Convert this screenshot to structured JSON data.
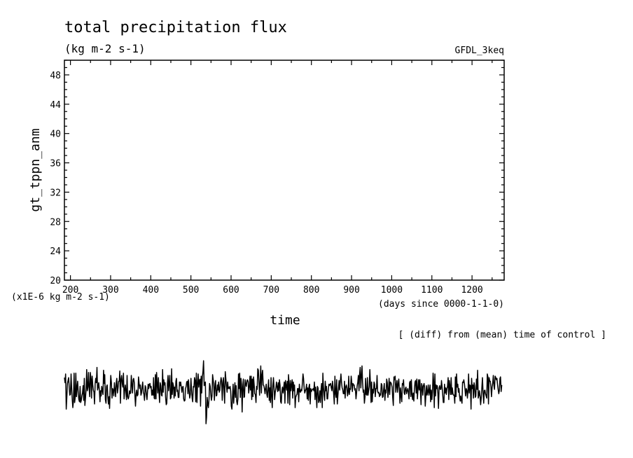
{
  "chart_data": {
    "type": "line",
    "title": "total precipitation flux",
    "subtitle": "(kg m-2 s-1)",
    "experiment": "GFDL_3keq",
    "xlabel": "time",
    "x_unit": "(days since 0000-1-1-0)",
    "ylabel": "gt_tppn_anm",
    "y_scale_note": "(x1E-6 kg m-2 s-1)",
    "footnote": "[ (diff) from (mean) time of control ]",
    "xlim": [
      185,
      1280
    ],
    "ylim": [
      20,
      50
    ],
    "x_ticks": [
      200,
      300,
      400,
      500,
      600,
      700,
      800,
      900,
      1000,
      1100,
      1200
    ],
    "y_ticks": [
      20,
      24,
      28,
      32,
      36,
      40,
      44,
      48
    ],
    "grid": false,
    "series": [
      {
        "x_start": 185,
        "x_step": 1.5,
        "values": [
          6.7,
          6.0,
          7.2,
          2.4,
          3.9,
          5.9,
          6.3,
          6.7,
          5.3,
          4.3,
          4.4,
          7.2,
          5.3,
          3.7,
          2.6,
          3.5,
          7.3,
          3.3,
          4.1,
          7.3,
          4.1,
          5.4,
          6.2,
          4.5,
          3.7,
          3.4,
          5.5,
          3.3,
          3.6,
          4.2,
          4.6,
          5.6,
          3.6,
          6.6,
          2.9,
          3.9,
          5.2,
          7.8,
          4.9,
          5.4,
          7.4,
          5.3,
          4.1,
          7.4,
          6.5,
          3.9,
          6.9,
          5.8,
          5.0,
          4.7,
          3.1,
          5.9,
          6.6,
          6.0,
          8.1,
          5.0,
          5.4,
          6.0,
          5.0,
          3.4,
          4.9,
          4.2,
          5.5,
          5.0,
          4.4,
          7.7,
          5.9,
          7.1,
          3.7,
          3.2,
          5.5,
          5.7,
          4.2,
          3.1,
          4.1,
          2.5,
          5.3,
          7.0,
          6.0,
          3.9,
          5.2,
          5.0,
          4.2,
          6.0,
          5.0,
          4.1,
          6.0,
          6.6,
          4.6,
          5.3,
          6.2,
          6.2,
          7.6,
          3.2,
          6.5,
          7.0,
          5.9,
          5.4,
          7.3,
          3.8,
          4.9,
          5.7,
          4.9,
          3.7,
          7.0,
          4.1,
          3.8,
          4.1,
          4.9,
          4.5,
          4.6,
          7.0,
          5.7,
          4.6,
          6.4,
          6.6,
          6.0,
          4.2,
          2.8,
          4.5,
          5.0,
          4.2,
          4.4,
          6.8,
          5.9,
          5.2,
          5.7,
          4.3,
          4.6,
          5.5,
          6.1,
          4.7,
          4.4,
          3.6,
          5.6,
          5.4,
          4.4,
          3.7,
          4.8,
          5.8,
          5.2,
          5.8,
          5.9,
          5.3,
          5.5,
          4.3,
          5.0,
          4.3,
          6.7,
          3.9,
          3.8,
          7.1,
          3.8,
          7.4,
          5.8,
          4.6,
          6.7,
          4.7,
          3.3,
          6.0,
          5.6,
          4.3,
          4.2,
          7.8,
          4.7,
          6.4,
          5.7,
          6.0,
          4.0,
          3.0,
          3.2,
          5.9,
          7.0,
          4.9,
          6.0,
          7.0,
          3.8,
          4.0,
          7.9,
          4.4,
          6.0,
          5.6,
          3.9,
          5.4,
          4.2,
          6.2,
          6.6,
          4.8,
          5.0,
          4.0,
          4.0,
          6.1,
          5.6,
          6.1,
          5.4,
          4.7,
          5.4,
          5.5,
          3.8,
          3.5,
          3.6,
          5.2,
          5.5,
          6.1,
          6.2,
          4.5,
          6.4,
          4.9,
          3.9,
          4.4,
          6.6,
          5.1,
          3.9,
          3.4,
          5.5,
          5.4,
          6.7,
          6.3,
          3.4,
          7.3,
          3.3,
          5.8,
          7.2,
          5.4,
          6.3,
          6.5,
          2.8,
          6.9,
          4.6,
          6.8,
          7.6,
          9.0,
          5.6,
          5.9,
          6.1,
          0.4,
          1.3,
          4.0,
          3.1,
          2.6,
          3.8,
          5.9,
          5.5,
          4.5,
          3.6,
          4.2,
          7.1,
          6.4,
          5.5,
          3.6,
          5.9,
          6.3,
          4.2,
          4.3,
          5.7,
          5.0,
          6.1,
          4.7,
          5.0,
          6.0,
          6.7,
          6.3,
          3.6,
          6.0,
          6.7,
          4.9,
          3.2,
          7.5,
          6.5,
          5.5,
          4.7,
          6.1,
          5.2,
          5.4,
          5.2,
          5.5,
          4.9,
          2.8,
          2.4,
          4.0,
          5.8,
          3.2,
          4.6,
          6.0,
          4.0,
          5.6,
          3.5,
          3.0,
          3.8,
          7.2,
          5.2,
          7.3,
          4.0,
          6.6,
          5.8,
          2.0,
          5.3,
          6.5,
          4.0,
          4.1,
          6.4,
          5.8,
          5.5,
          6.3,
          6.4,
          6.1,
          4.6,
          5.4,
          6.9,
          5.0,
          6.9,
          3.7,
          6.5,
          4.1,
          6.8,
          5.7,
          4.5,
          4.4,
          3.3,
          5.5,
          5.1,
          7.9,
          7.7,
          5.9,
          4.3,
          6.4,
          8.3,
          4.6,
          7.1,
          7.7,
          5.7,
          5.6,
          5.2,
          4.5,
          5.2,
          5.8,
          4.4,
          4.0,
          5.3,
          6.4,
          3.6,
          5.3,
          3.3,
          6.7,
          4.2,
          2.6,
          5.6,
          6.7,
          5.3,
          3.7,
          4.7,
          5.3,
          6.1,
          5.4,
          4.8,
          6.0,
          4.9,
          6.4,
          5.6,
          3.4,
          3.2,
          4.9,
          5.4,
          4.6,
          5.3,
          6.1,
          3.2,
          6.3,
          5.6,
          5.0,
          6.2,
          3.2,
          7.1,
          5.8,
          3.0,
          6.3,
          4.9,
          5.7,
          6.4,
          3.9,
          6.1,
          4.9,
          5.7,
          2.6,
          4.0,
          4.3,
          4.4,
          5.2,
          5.2,
          3.4,
          5.8,
          4.8,
          4.7,
          5.1,
          4.9,
          5.9,
          7.2,
          6.6,
          5.2,
          4.6,
          4.9,
          5.2,
          5.8,
          3.8,
          5.3,
          3.6,
          5.5,
          5.8,
          3.1,
          5.2,
          4.8,
          5.0,
          5.1,
          5.2,
          4.9,
          6.1,
          3.7,
          5.4,
          4.4,
          2.6,
          5.5,
          5.3,
          3.3,
          3.6,
          4.9,
          3.3,
          5.1,
          5.9,
          2.6,
          7.3,
          5.5,
          4.3,
          3.6,
          6.2,
          4.9,
          5.5,
          3.8,
          3.8,
          5.0,
          5.8,
          5.6,
          5.8,
          5.9,
          5.3,
          4.9,
          6.2,
          5.4,
          4.5,
          3.1,
          6.9,
          4.6,
          4.0,
          6.4,
          3.1,
          4.3,
          5.3,
          6.3,
          5.0,
          6.1,
          7.2,
          6.1,
          5.3,
          5.1,
          4.5,
          4.5,
          6.2,
          3.9,
          5.4,
          5.7,
          5.3,
          4.2,
          4.7,
          6.9,
          4.4,
          5.2,
          5.1,
          6.9,
          6.0,
          4.8,
          5.9,
          5.7,
          5.7,
          5.0,
          5.2,
          3.8,
          4.6,
          5.6,
          6.1,
          7.0,
          4.9,
          7.1,
          8.1,
          5.3,
          6.8,
          8.3,
          6.1,
          4.7,
          5.0,
          3.2,
          4.1,
          6.6,
          4.4,
          4.3,
          6.7,
          4.3,
          4.9,
          5.5,
          7.8,
          5.9,
          3.3,
          6.1,
          3.4,
          5.1,
          4.6,
          6.1,
          5.8,
          4.1,
          5.2,
          5.2,
          7.0,
          4.8,
          4.6,
          4.7,
          4.1,
          4.5,
          4.3,
          5.9,
          5.7,
          4.0,
          4.1,
          5.1,
          5.9,
          3.6,
          5.0,
          4.6,
          6.5,
          6.0,
          4.0,
          5.0,
          6.6,
          4.4,
          6.1,
          6.0,
          5.8,
          5.4,
          4.0,
          2.9,
          6.8,
          6.4,
          6.9,
          4.7,
          5.6,
          6.3,
          4.7,
          5.8,
          6.5,
          5.1,
          3.2,
          5.3,
          4.2,
          3.4,
          5.9,
          5.7,
          6.4,
          4.6,
          4.4,
          5.2,
          5.4,
          4.5,
          4.9,
          5.2,
          4.7,
          3.8,
          6.0,
          6.2,
          4.1,
          6.4,
          4.4,
          3.7,
          4.6,
          3.5,
          5.1,
          6.1,
          6.3,
          4.6,
          6.5,
          3.8,
          5.2,
          6.4,
          5.0,
          6.4,
          4.9,
          3.0,
          5.9,
          5.5,
          4.3,
          5.6,
          5.9,
          5.4,
          2.8,
          4.3,
          5.6,
          4.3,
          4.7,
          5.7,
          4.3,
          4.8,
          5.7,
          3.4,
          5.0,
          3.7,
          4.7,
          7.3,
          6.2,
          2.6,
          7.2,
          4.2,
          5.7,
          5.2,
          5.6,
          4.5,
          2.5,
          5.3,
          5.6,
          5.1,
          5.1,
          6.3,
          5.4,
          4.3,
          3.3,
          3.3,
          5.8,
          4.6,
          5.3,
          4.4,
          5.2,
          5.5,
          6.7,
          3.7,
          6.3,
          5.5,
          4.4,
          6.7,
          4.4,
          5.3,
          4.5,
          4.3,
          4.3,
          3.2,
          6.8,
          4.1,
          7.2,
          5.4,
          5.8,
          4.7,
          5.2,
          4.2,
          3.5,
          4.2,
          3.6,
          3.2,
          6.1,
          6.0,
          6.4,
          5.9,
          5.1,
          4.2,
          5.2,
          5.0,
          3.9,
          4.9,
          7.2,
          4.6,
          5.7,
          5.6,
          2.4,
          6.6,
          5.2,
          5.7,
          3.9,
          6.0,
          5.6,
          4.0,
          4.2,
          6.5,
          5.1,
          7.7,
          3.9,
          4.3,
          4.9,
          4.1,
          3.0,
          4.0,
          5.4,
          6.7,
          4.6,
          3.2,
          4.9,
          5.0,
          4.5,
          4.2,
          3.9,
          7.2,
          6.8,
          3.1,
          6.7,
          6.2,
          6.2,
          5.4,
          4.1,
          5.4,
          6.0,
          7.0,
          5.6,
          5.1,
          6.9,
          6.7,
          6.4,
          6.6,
          5.8,
          5.1,
          4.5,
          4.9,
          6.6,
          6.8,
          4.8,
          5.7
        ]
      }
    ]
  }
}
